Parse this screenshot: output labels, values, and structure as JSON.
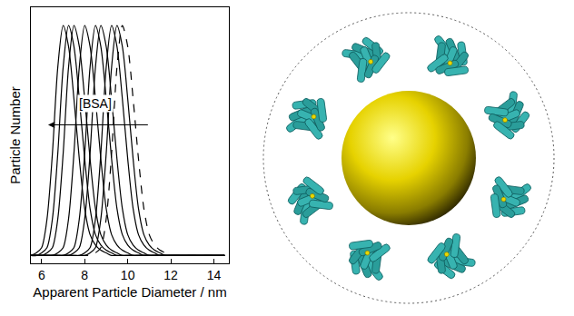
{
  "chart_data": {
    "type": "line",
    "x_label": "Apparent Particle Diameter / nm",
    "y_label": "Particle Number",
    "x": [
      5.5,
      5.75,
      6,
      6.25,
      6.5,
      6.75,
      7,
      7.25,
      7.5,
      7.75,
      8,
      8.25,
      8.5,
      8.75,
      9,
      9.25,
      9.5,
      9.75,
      10,
      10.25,
      10.5,
      10.75,
      11,
      11.25,
      11.5,
      11.75,
      12,
      12.25,
      12.5,
      12.75,
      13,
      13.25,
      13.5,
      13.75,
      14,
      14.25,
      14.5
    ],
    "color": "#000000",
    "series": [
      {
        "values": [
          0,
          0.01,
          0.03,
          0.14,
          0.39,
          0.72,
          0.88,
          0.8,
          0.6,
          0.37,
          0.18,
          0.08,
          0.04,
          0.02,
          0.01,
          0,
          0,
          0,
          0,
          0,
          0,
          0,
          0,
          0,
          0,
          0,
          0,
          0,
          0,
          0,
          0,
          0,
          0,
          0,
          0,
          0,
          0
        ]
      },
      {
        "values": [
          0,
          0,
          0.01,
          0.03,
          0.14,
          0.39,
          0.72,
          0.88,
          0.8,
          0.6,
          0.37,
          0.18,
          0.08,
          0.04,
          0.02,
          0.01,
          0,
          0,
          0,
          0,
          0,
          0,
          0,
          0,
          0,
          0,
          0,
          0,
          0,
          0,
          0,
          0,
          0,
          0,
          0,
          0,
          0
        ]
      },
      {
        "values": [
          0,
          0,
          0,
          0.01,
          0.03,
          0.14,
          0.39,
          0.72,
          0.88,
          0.8,
          0.6,
          0.37,
          0.18,
          0.08,
          0.04,
          0.02,
          0.01,
          0,
          0,
          0,
          0,
          0,
          0,
          0,
          0,
          0,
          0,
          0,
          0,
          0,
          0,
          0,
          0,
          0,
          0,
          0,
          0
        ]
      },
      {
        "values": [
          0,
          0,
          0,
          0,
          0,
          0.01,
          0.03,
          0.14,
          0.39,
          0.72,
          0.88,
          0.8,
          0.6,
          0.37,
          0.18,
          0.08,
          0.04,
          0.02,
          0.01,
          0,
          0,
          0,
          0,
          0,
          0,
          0,
          0,
          0,
          0,
          0,
          0,
          0,
          0,
          0,
          0,
          0,
          0
        ]
      },
      {
        "values": [
          0,
          0,
          0,
          0,
          0,
          0,
          0,
          0.01,
          0.03,
          0.14,
          0.39,
          0.72,
          0.88,
          0.8,
          0.6,
          0.37,
          0.18,
          0.08,
          0.04,
          0.02,
          0.01,
          0,
          0,
          0,
          0,
          0,
          0,
          0,
          0,
          0,
          0,
          0,
          0,
          0,
          0,
          0,
          0
        ]
      },
      {
        "values": [
          0,
          0,
          0,
          0,
          0,
          0,
          0,
          0,
          0.01,
          0.03,
          0.14,
          0.39,
          0.72,
          0.88,
          0.8,
          0.6,
          0.37,
          0.18,
          0.08,
          0.04,
          0.02,
          0.01,
          0,
          0,
          0,
          0,
          0,
          0,
          0,
          0,
          0,
          0,
          0,
          0,
          0,
          0,
          0
        ]
      },
      {
        "values": [
          0,
          0,
          0,
          0,
          0,
          0,
          0,
          0,
          0,
          0,
          0.01,
          0.03,
          0.14,
          0.39,
          0.72,
          0.88,
          0.8,
          0.6,
          0.37,
          0.18,
          0.08,
          0.04,
          0.02,
          0.01,
          0,
          0,
          0,
          0,
          0,
          0,
          0,
          0,
          0,
          0,
          0,
          0,
          0
        ]
      },
      {
        "values": [
          0,
          0,
          0,
          0,
          0,
          0,
          0,
          0,
          0,
          0,
          0,
          0.01,
          0.03,
          0.14,
          0.39,
          0.72,
          0.88,
          0.8,
          0.6,
          0.37,
          0.18,
          0.08,
          0.04,
          0.02,
          0.01,
          0,
          0,
          0,
          0,
          0,
          0,
          0,
          0,
          0,
          0,
          0,
          0
        ]
      },
      {
        "values": [
          0,
          0,
          0,
          0,
          0,
          0,
          0,
          0,
          0,
          0,
          0,
          0,
          0.01,
          0.03,
          0.14,
          0.39,
          0.72,
          0.88,
          0.8,
          0.6,
          0.37,
          0.18,
          0.08,
          0.04,
          0.02,
          0.01,
          0,
          0,
          0,
          0,
          0,
          0,
          0,
          0,
          0,
          0,
          0
        ],
        "line_style": "dashed"
      }
    ],
    "annotations": [
      {
        "text": "[BSA]",
        "x": 8.5,
        "y": 0.58,
        "arrow_from": 11.0,
        "arrow_to": 6.3,
        "arrow_y": 0.5
      }
    ],
    "xlim": [
      5.5,
      14.7
    ],
    "xticks": [
      6,
      8,
      10,
      12,
      14
    ],
    "ylim": [
      -0.03,
      0.95
    ],
    "tick_labels": "x",
    "grid": false
  }
}
